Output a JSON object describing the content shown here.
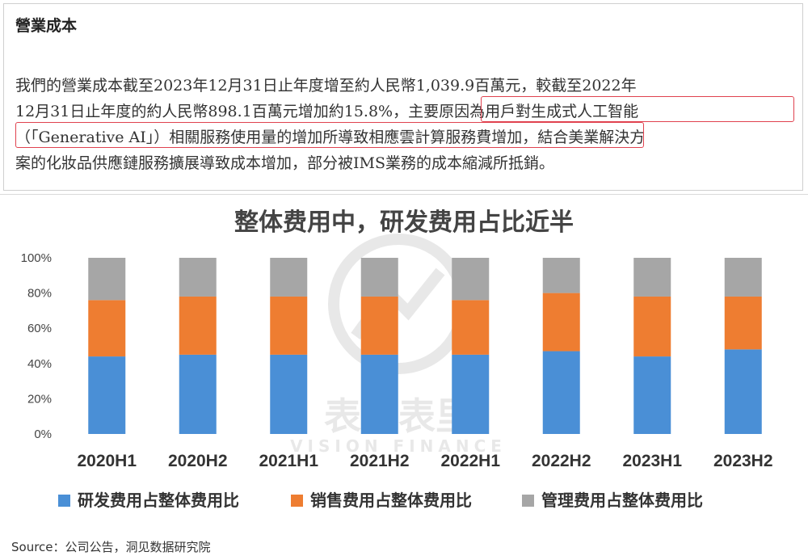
{
  "doc": {
    "heading": "營業成本",
    "lines": [
      "我們的營業成本截至2023年12月31日止年度增至約人民幣1,039.9百萬元，較截至2022年",
      "12月31日止年度的約人民幣898.1百萬元增加約15.8%，主要原因為用戶對生成式人工智能",
      "（「Generative AI」）相關服務使用量的增加所導致相應雲計算服務費增加，結合美業解決方",
      "案的化妝品供應鏈服務擴展導致成本增加，部分被IMS業務的成本縮減所抵銷。"
    ]
  },
  "watermark": {
    "cn": "表外表里",
    "en": "VISION FINANCE"
  },
  "chart_data": {
    "type": "bar",
    "stacked": true,
    "title": "整体费用中，研发费用占比近半",
    "categories": [
      "2020H1",
      "2020H2",
      "2021H1",
      "2021H2",
      "2022H1",
      "2022H2",
      "2023H1",
      "2023H2"
    ],
    "y_ticks": [
      "0%",
      "20%",
      "40%",
      "60%",
      "80%",
      "100%"
    ],
    "ylim": [
      0,
      100
    ],
    "series": [
      {
        "name": "研发费用占整体费用比",
        "color": "#4a8fd6",
        "values": [
          44,
          45,
          45,
          45,
          45,
          47,
          44,
          48
        ]
      },
      {
        "name": "销售费用占整体费用比",
        "color": "#ee7d31",
        "values": [
          32,
          33,
          33,
          33,
          31,
          33,
          34,
          30
        ]
      },
      {
        "name": "管理费用占整体费用比",
        "color": "#a6a6a6",
        "values": [
          24,
          22,
          22,
          22,
          24,
          20,
          22,
          22
        ]
      }
    ],
    "legend": "bottom"
  },
  "source": "Source：公司公告，洞见数据研究院"
}
